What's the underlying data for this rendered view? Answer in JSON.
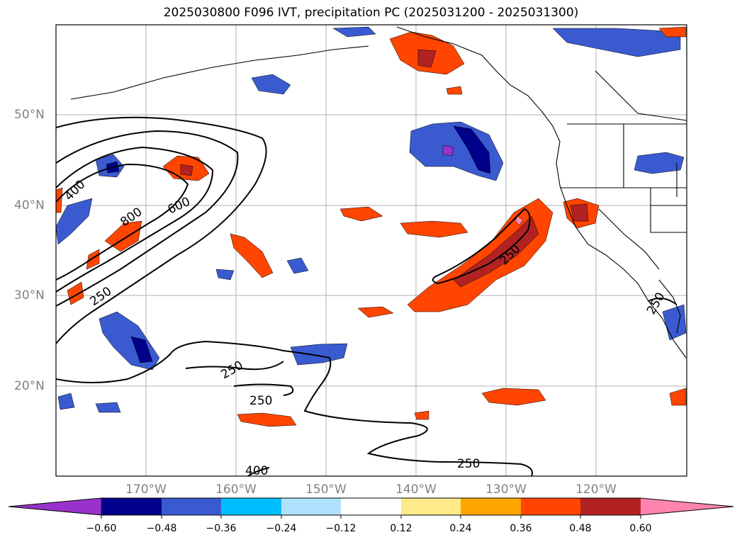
{
  "title": "2025030800 F096 IVT, precipitation PC (2025031200 - 2025031300)",
  "lat_labels": [
    "50°N",
    "40°N",
    "30°N",
    "20°N"
  ],
  "lon_labels": [
    "170°W",
    "160°W",
    "150°W",
    "140°W",
    "130°W",
    "120°W"
  ],
  "contour_labels": [
    "400",
    "800",
    "600",
    "250",
    "250",
    "250",
    "250",
    "250",
    "400",
    "250"
  ],
  "colorbar": {
    "ticks": [
      "−0.60",
      "−0.48",
      "−0.36",
      "−0.24",
      "−0.12",
      "0.12",
      "0.24",
      "0.36",
      "0.48",
      "0.60"
    ],
    "colors": [
      "#9932cc",
      "#00008b",
      "#3a5bd0",
      "#00bfff",
      "#b0e2ff",
      "#ffffff",
      "#ffea8a",
      "#ffa500",
      "#ff4500",
      "#b22222",
      "#ff85b0"
    ]
  },
  "chart_data": {
    "type": "heatmap",
    "title": "2025030800 F096 IVT, precipitation PC (2025031200 - 2025031300)",
    "variable_contours": "IVT",
    "contour_levels": [
      250,
      400,
      600,
      800
    ],
    "shaded_variable": "precipitation PC",
    "shading_levels": [
      -0.6,
      -0.48,
      -0.36,
      -0.24,
      -0.12,
      0.12,
      0.24,
      0.36,
      0.48,
      0.6
    ],
    "lon_range": [
      -180,
      -110
    ],
    "lat_range": [
      10,
      60
    ],
    "grid": true
  }
}
